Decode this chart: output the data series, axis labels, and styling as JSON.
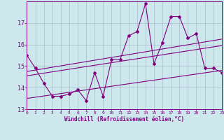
{
  "xlabel": "Windchill (Refroidissement éolien,°C)",
  "ylabel": "",
  "bg_color": "#cce8ec",
  "line_color": "#800080",
  "grid_color": "#aabbcc",
  "xlim": [
    0,
    23
  ],
  "ylim": [
    13,
    18
  ],
  "yticks": [
    13,
    14,
    15,
    16,
    17
  ],
  "xticks": [
    0,
    1,
    2,
    3,
    4,
    5,
    6,
    7,
    8,
    9,
    10,
    11,
    12,
    13,
    14,
    15,
    16,
    17,
    18,
    19,
    20,
    21,
    22,
    23
  ],
  "line1_x": [
    0,
    1,
    2,
    3,
    4,
    5,
    6,
    7,
    8,
    9,
    10,
    11,
    12,
    13,
    14,
    15,
    16,
    17,
    18,
    19,
    20,
    21,
    22,
    23
  ],
  "line1_y": [
    15.5,
    14.9,
    14.2,
    13.6,
    13.6,
    13.7,
    13.9,
    13.4,
    14.7,
    13.6,
    15.3,
    15.3,
    16.4,
    16.6,
    17.9,
    15.1,
    16.1,
    17.3,
    17.3,
    16.3,
    16.5,
    14.9,
    14.9,
    14.7
  ],
  "line2_x": [
    0,
    23
  ],
  "line2_y": [
    14.55,
    15.95
  ],
  "line3_x": [
    0,
    23
  ],
  "line3_y": [
    14.75,
    16.25
  ],
  "line4_x": [
    0,
    23
  ],
  "line4_y": [
    13.5,
    14.8
  ]
}
